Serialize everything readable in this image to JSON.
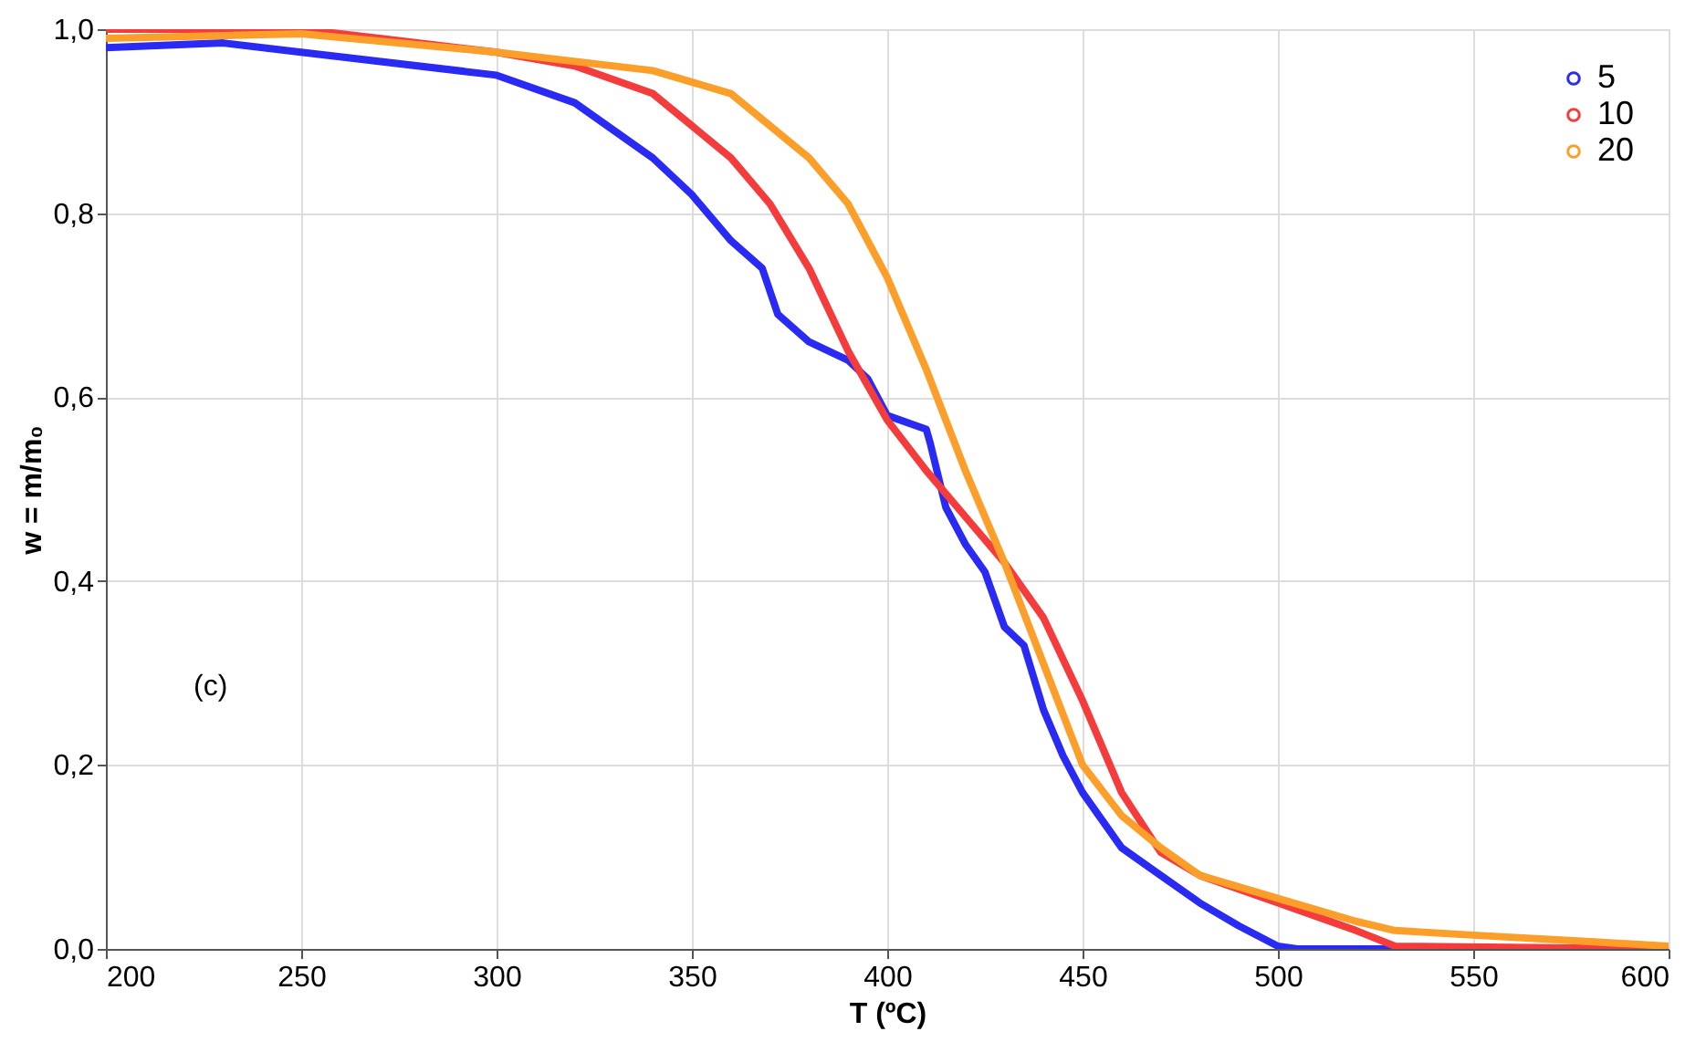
{
  "chart_data": {
    "type": "line",
    "xlabel": "T (ºC)",
    "ylabel": "w = m/m₀",
    "annotations": [
      "(c)"
    ],
    "xlim": [
      200,
      600
    ],
    "xticks": [
      200,
      250,
      300,
      350,
      400,
      450,
      500,
      550,
      600
    ],
    "ylim": [
      0,
      1
    ],
    "yticks": [
      {
        "value": 0,
        "label": "0,0"
      },
      {
        "value": 0.2,
        "label": "0,2"
      },
      {
        "value": 0.4,
        "label": "0,4"
      },
      {
        "value": 0.6,
        "label": "0,6"
      },
      {
        "value": 0.8,
        "label": "0,8"
      },
      {
        "value": 1,
        "label": "1,0"
      }
    ],
    "grid": true,
    "legend": "top right",
    "line_style": "solid",
    "series": [
      {
        "name": "5",
        "color": "#2a2af5",
        "x": [
          200,
          230,
          250,
          300,
          320,
          340,
          350,
          360,
          368,
          372,
          380,
          390,
          395,
          400,
          410,
          411,
          415,
          420,
          425,
          430,
          435,
          440,
          445,
          450,
          455,
          460,
          470,
          480,
          490,
          500,
          505,
          530
        ],
        "values": [
          0.98,
          0.985,
          0.975,
          0.95,
          0.92,
          0.86,
          0.82,
          0.77,
          0.74,
          0.69,
          0.66,
          0.64,
          0.62,
          0.58,
          0.565,
          0.55,
          0.48,
          0.44,
          0.41,
          0.35,
          0.33,
          0.26,
          0.21,
          0.17,
          0.14,
          0.11,
          0.08,
          0.05,
          0.025,
          0.003,
          0,
          0
        ]
      },
      {
        "name": "10",
        "color": "#f53c3c",
        "x": [
          200,
          250,
          270,
          300,
          320,
          340,
          360,
          370,
          380,
          390,
          400,
          410,
          420,
          430,
          440,
          450,
          460,
          470,
          480,
          500,
          520,
          530,
          600
        ],
        "values": [
          1.0,
          1.0,
          0.99,
          0.975,
          0.96,
          0.93,
          0.86,
          0.81,
          0.74,
          0.65,
          0.575,
          0.52,
          0.47,
          0.42,
          0.36,
          0.27,
          0.17,
          0.105,
          0.08,
          0.05,
          0.02,
          0.003,
          0
        ]
      },
      {
        "name": "20",
        "color": "#fb9e2a",
        "x": [
          200,
          250,
          300,
          340,
          360,
          380,
          390,
          400,
          410,
          420,
          430,
          440,
          450,
          460,
          470,
          480,
          500,
          520,
          530,
          550,
          580,
          600
        ],
        "values": [
          0.99,
          0.995,
          0.975,
          0.955,
          0.93,
          0.86,
          0.81,
          0.73,
          0.63,
          0.52,
          0.42,
          0.31,
          0.2,
          0.145,
          0.11,
          0.08,
          0.055,
          0.03,
          0.02,
          0.015,
          0.008,
          0.003
        ]
      }
    ]
  }
}
